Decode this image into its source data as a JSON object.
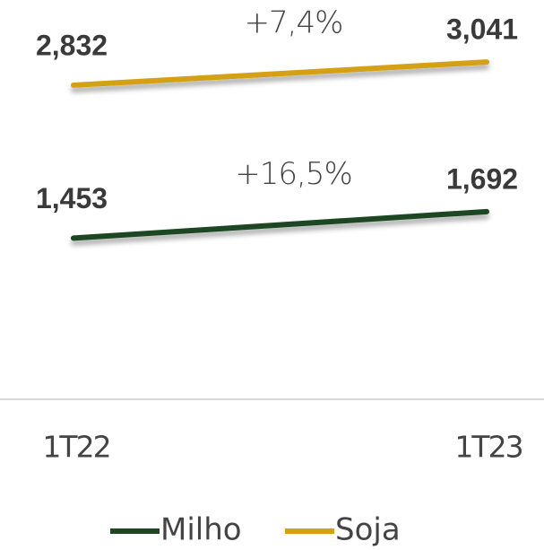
{
  "chart_data": {
    "type": "line",
    "categories": [
      "1T22",
      "1T23"
    ],
    "series": [
      {
        "name": "Milho",
        "color": "#1e4620",
        "values": [
          1.453,
          1.692
        ],
        "value_labels": [
          "1,453",
          "1,692"
        ]
      },
      {
        "name": "Soja",
        "color": "#d4a017",
        "values": [
          2.832,
          3.041
        ],
        "value_labels": [
          "2,832",
          "3,041"
        ]
      }
    ],
    "annotations": [
      {
        "series": 0,
        "text": "+16,5%"
      },
      {
        "series": 1,
        "text": "+7,4%"
      }
    ],
    "ylim": [
      0,
      3.6
    ]
  }
}
